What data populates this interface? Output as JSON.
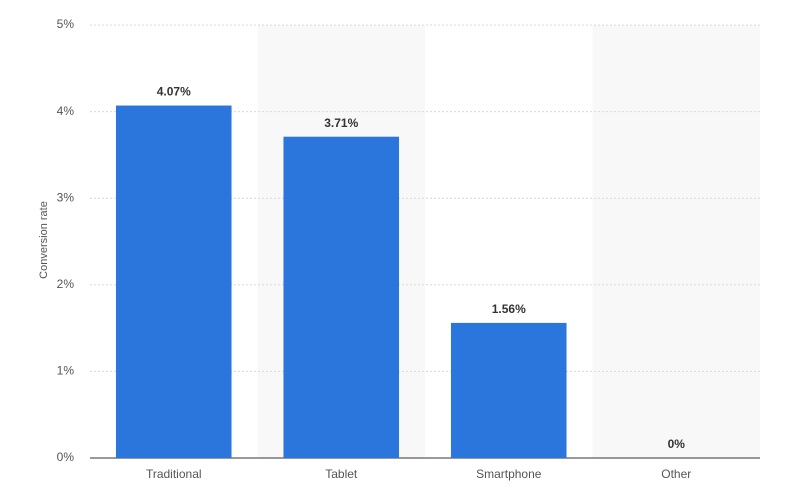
{
  "chart_data": {
    "type": "bar",
    "y_label": "Conversion rate",
    "categories": [
      "Traditional",
      "Tablet",
      "Smartphone",
      "Other"
    ],
    "values": [
      4.07,
      3.71,
      1.56,
      0
    ],
    "value_labels": [
      "4.07%",
      "3.71%",
      "1.56%",
      "0%"
    ],
    "color": "#2b76dd",
    "ylim": [
      0,
      5
    ],
    "yticks": [
      {
        "value": 0,
        "label": "0%"
      },
      {
        "value": 1,
        "label": "1%"
      },
      {
        "value": 2,
        "label": "2%"
      },
      {
        "value": 3,
        "label": "3%"
      },
      {
        "value": 4,
        "label": "4%"
      },
      {
        "value": 5,
        "label": "5%"
      }
    ],
    "grid": true
  }
}
